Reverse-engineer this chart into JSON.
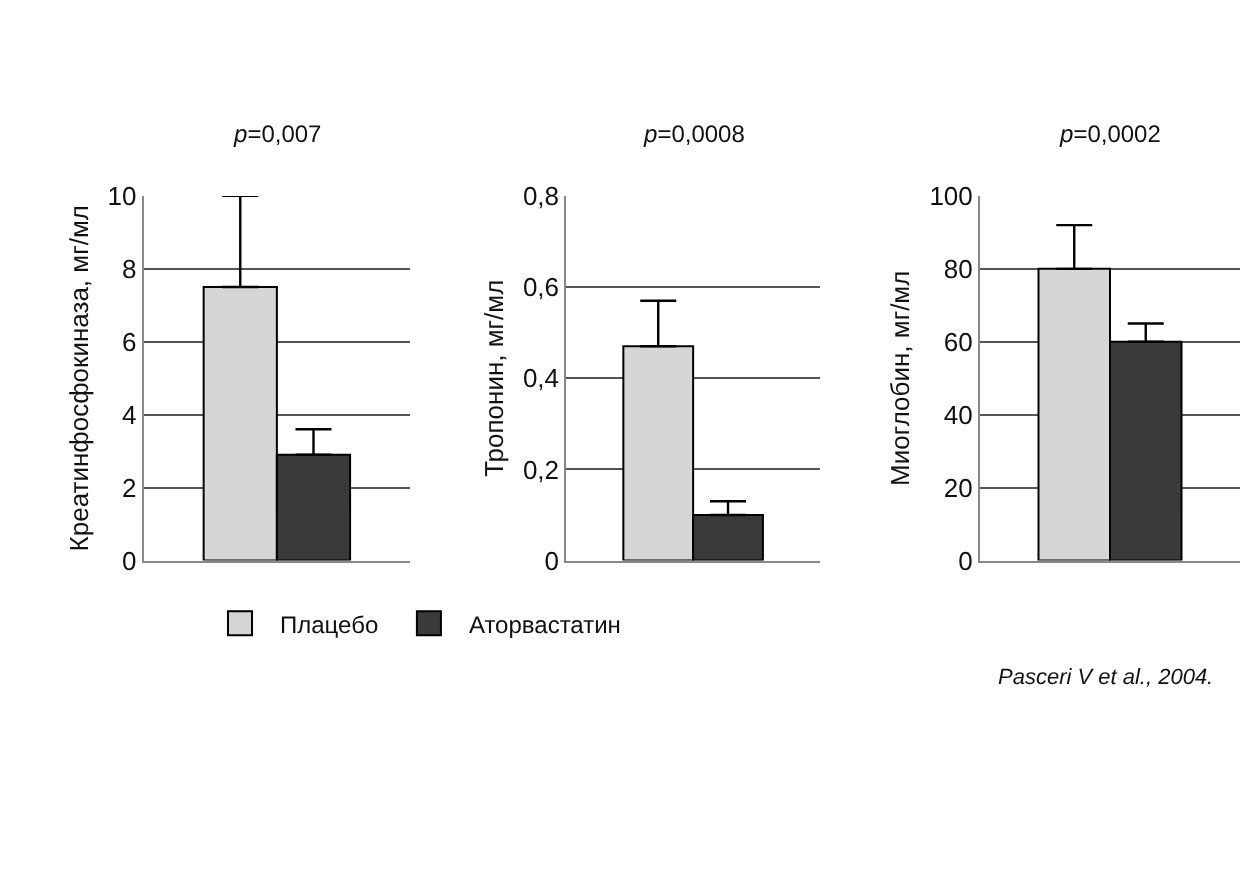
{
  "chart_data": [
    {
      "type": "bar",
      "title": "p=0,007",
      "ylabel": "Креатинфосфокиназа, мг/мл",
      "categories": [
        null
      ],
      "ylim": [
        0,
        10
      ],
      "yticks": [
        0,
        2,
        4,
        6,
        8,
        10
      ],
      "grid": "y",
      "legend": "bottom",
      "series": [
        {
          "name": "Плацебо",
          "color": "#d6d6d6",
          "values": [
            7.5
          ],
          "errors": [
            [
              7.5,
              10
            ]
          ]
        },
        {
          "name": "Аторвастатин",
          "color": "#3a3a3a",
          "values": [
            2.9
          ],
          "errors": [
            [
              2.9,
              3.6
            ]
          ]
        }
      ]
    },
    {
      "type": "bar",
      "title": "p=0,0008",
      "ylabel": "Тропонин, мг/мл",
      "categories": [
        null
      ],
      "ylim": [
        0,
        0.8
      ],
      "yticks": [
        0,
        {
          "value": 0.2,
          "label": "0,2"
        },
        {
          "value": 0.4,
          "label": "0,4"
        },
        {
          "value": 0.6,
          "label": "0,6"
        },
        {
          "value": 0.8,
          "label": "0,8"
        }
      ],
      "grid": "y",
      "series": [
        {
          "color": "#d6d6d6",
          "values": [
            0.47
          ],
          "errors": [
            [
              0.47,
              0.57
            ]
          ]
        },
        {
          "color": "#3a3a3a",
          "values": [
            0.1
          ],
          "errors": [
            [
              0.1,
              0.13
            ]
          ]
        }
      ]
    },
    {
      "type": "bar",
      "title": "p=0,0002",
      "ylabel": "Миоглобин, мг/мл",
      "categories": [
        null
      ],
      "ylim": [
        0,
        100
      ],
      "yticks": [
        0,
        20,
        40,
        60,
        80,
        100
      ],
      "grid": "y",
      "annotations": [
        "Pasceri V et al., 2004."
      ],
      "series": [
        {
          "color": "#d6d6d6",
          "values": [
            80
          ],
          "errors": [
            [
              80,
              92
            ]
          ]
        },
        {
          "color": "#3a3a3a",
          "values": [
            60
          ],
          "errors": [
            [
              60,
              65
            ]
          ]
        }
      ]
    }
  ]
}
